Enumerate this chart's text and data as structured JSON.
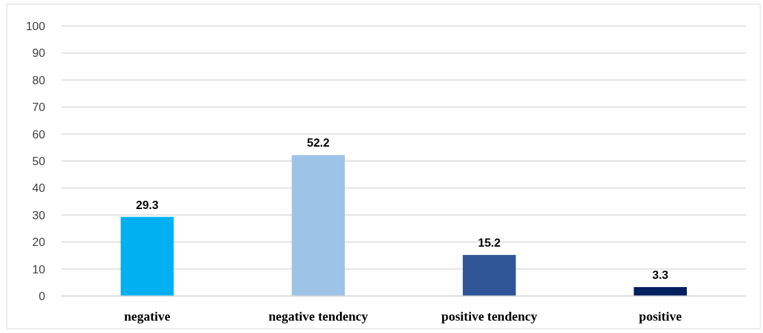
{
  "chart_data": {
    "type": "bar",
    "categories": [
      "negative",
      "negative tendency",
      "positive tendency",
      "positive"
    ],
    "values": [
      29.3,
      52.2,
      15.2,
      3.3
    ],
    "colors": [
      "#00b0f0",
      "#9dc3e6",
      "#2f5597",
      "#002060"
    ],
    "ylim": [
      0,
      100
    ],
    "yticks": [
      0,
      10,
      20,
      30,
      40,
      50,
      60,
      70,
      80,
      90,
      100
    ],
    "grid": "y",
    "data_labels": true
  }
}
